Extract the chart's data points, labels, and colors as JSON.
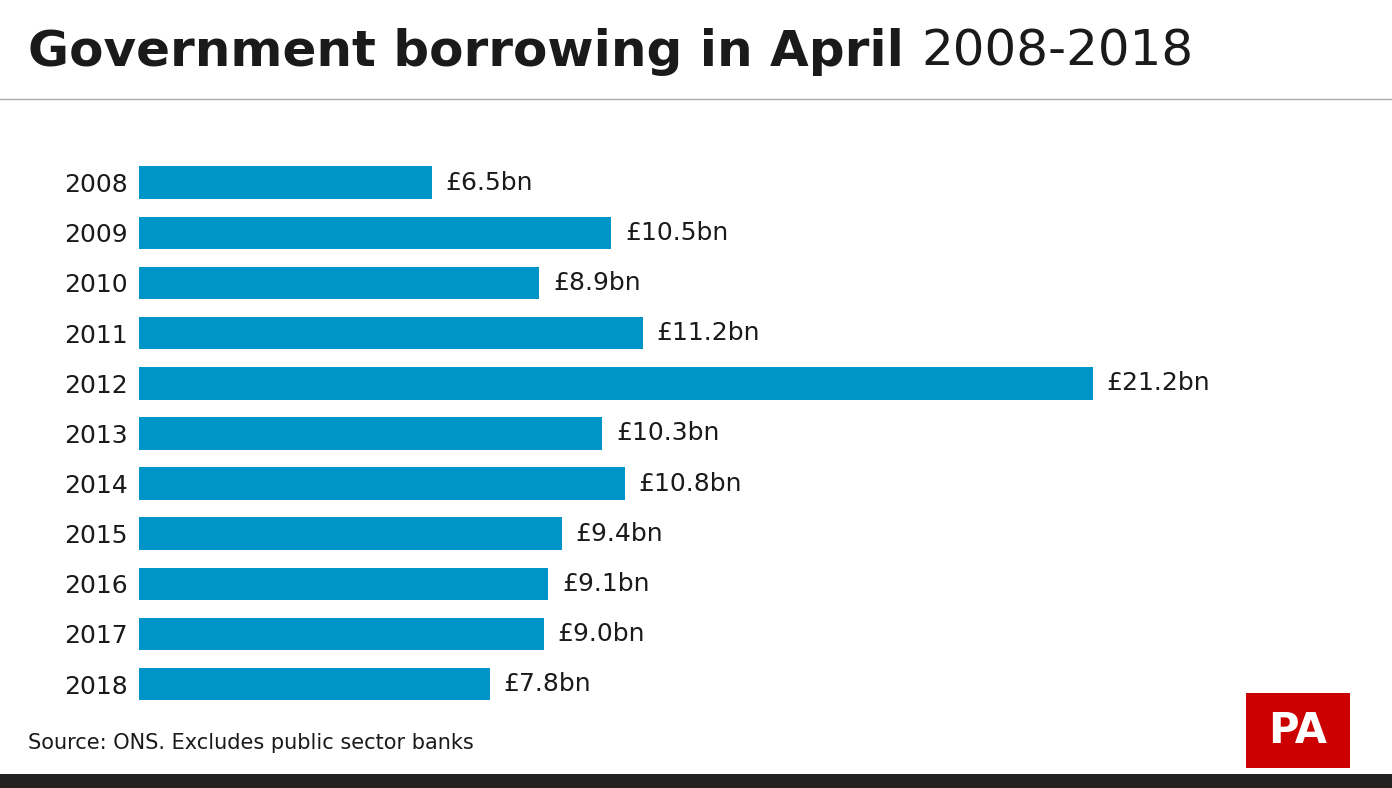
{
  "title_bold": "Government borrowing in April ",
  "title_normal": "2008-2018",
  "years": [
    "2008",
    "2009",
    "2010",
    "2011",
    "2012",
    "2013",
    "2014",
    "2015",
    "2016",
    "2017",
    "2018"
  ],
  "values": [
    6.5,
    10.5,
    8.9,
    11.2,
    21.2,
    10.3,
    10.8,
    9.4,
    9.1,
    9.0,
    7.8
  ],
  "labels": [
    "£6.5bn",
    "£10.5bn",
    "£8.9bn",
    "£11.2bn",
    "£21.2bn",
    "£10.3bn",
    "£10.8bn",
    "£9.4bn",
    "£9.1bn",
    "£9.0bn",
    "£7.8bn"
  ],
  "bar_color": "#0095C8",
  "background_color": "#ffffff",
  "text_color": "#1a1a1a",
  "source_text": "Source: ONS. Excludes public sector banks",
  "pa_bg_color": "#cc0000",
  "pa_text_color": "#ffffff",
  "title_fontsize": 36,
  "year_fontsize": 18,
  "label_fontsize": 18,
  "source_fontsize": 15
}
